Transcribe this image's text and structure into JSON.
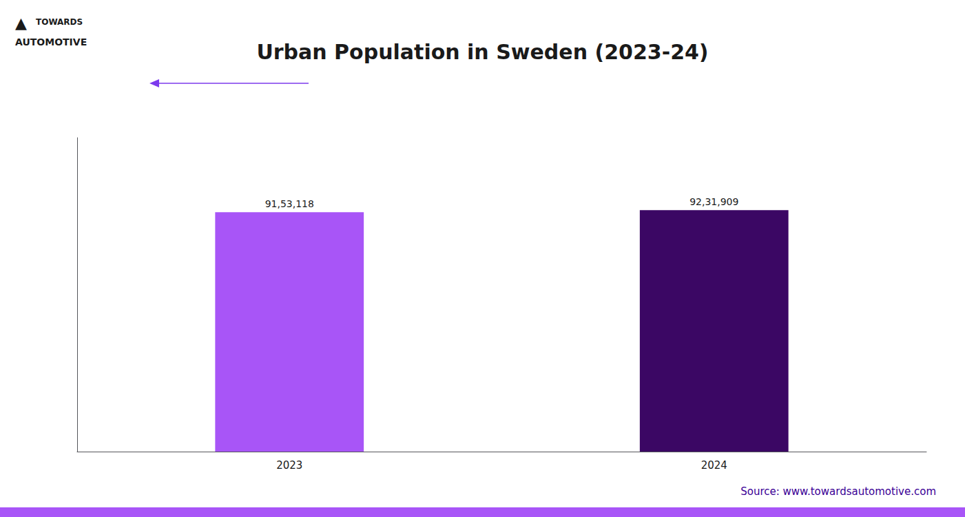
{
  "chart_data": {
    "type": "bar",
    "title": "Urban Population in Sweden (2023-24)",
    "categories": [
      "2023",
      "2024"
    ],
    "values": [
      9153118,
      9231909
    ],
    "value_labels": [
      "91,53,118",
      "92,31,909"
    ],
    "data_labels": true,
    "colors": [
      "#a855f7",
      "#3b0764"
    ],
    "ylim": [
      0,
      12000000
    ],
    "tick_labels": "x",
    "grid": false,
    "annotations": [
      "▲",
      "TOWARDS",
      "AUTOMOTIVE",
      "Source: www.towardsautomotive.com"
    ]
  }
}
